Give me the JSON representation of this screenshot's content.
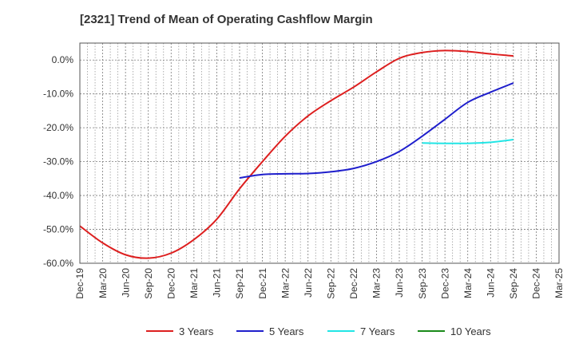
{
  "chart_data": {
    "type": "line",
    "title": "[2321]  Trend of Mean of Operating Cashflow Margin",
    "xlabel": "",
    "ylabel": "",
    "x_ticks": [
      "Dec-19",
      "Mar-20",
      "Jun-20",
      "Sep-20",
      "Dec-20",
      "Mar-21",
      "Jun-21",
      "Sep-21",
      "Dec-21",
      "Mar-22",
      "Jun-22",
      "Sep-22",
      "Dec-22",
      "Mar-23",
      "Jun-23",
      "Sep-23",
      "Dec-23",
      "Mar-24",
      "Jun-24",
      "Sep-24",
      "Dec-24",
      "Mar-25"
    ],
    "y_ticks": [
      "0.0%",
      "-10.0%",
      "-20.0%",
      "-30.0%",
      "-40.0%",
      "-50.0%",
      "-60.0%"
    ],
    "ylim": [
      -60,
      5
    ],
    "grid": true,
    "legend_position": "bottom",
    "series": [
      {
        "name": "3 Years",
        "color": "#dd1f1f",
        "x": [
          "Dec-19",
          "Mar-20",
          "Jun-20",
          "Sep-20",
          "Dec-20",
          "Mar-21",
          "Jun-21",
          "Sep-21",
          "Dec-21",
          "Mar-22",
          "Jun-22",
          "Sep-22",
          "Dec-22",
          "Mar-23",
          "Jun-23",
          "Sep-23",
          "Dec-23",
          "Mar-24",
          "Jun-24",
          "Sep-24"
        ],
        "values": [
          -49.0,
          -54.0,
          -57.5,
          -58.5,
          -57.0,
          -53.0,
          -47.0,
          -38.0,
          -30.0,
          -22.5,
          -16.5,
          -12.0,
          -8.0,
          -3.5,
          0.5,
          2.2,
          2.8,
          2.5,
          1.8,
          1.2
        ]
      },
      {
        "name": "5 Years",
        "color": "#1f1fcc",
        "x": [
          "Sep-21",
          "Dec-21",
          "Mar-22",
          "Jun-22",
          "Sep-22",
          "Dec-22",
          "Mar-23",
          "Jun-23",
          "Sep-23",
          "Dec-23",
          "Mar-24",
          "Jun-24",
          "Sep-24"
        ],
        "values": [
          -34.8,
          -33.8,
          -33.6,
          -33.5,
          -33.0,
          -32.0,
          -30.0,
          -27.0,
          -22.5,
          -17.5,
          -12.5,
          -9.5,
          -6.8
        ]
      },
      {
        "name": "7 Years",
        "color": "#22e5e5",
        "x": [
          "Sep-23",
          "Dec-23",
          "Mar-24",
          "Jun-24",
          "Sep-24"
        ],
        "values": [
          -24.5,
          -24.6,
          -24.6,
          -24.3,
          -23.5
        ]
      },
      {
        "name": "10 Years",
        "color": "#1a8a1a",
        "x": [],
        "values": []
      }
    ]
  }
}
